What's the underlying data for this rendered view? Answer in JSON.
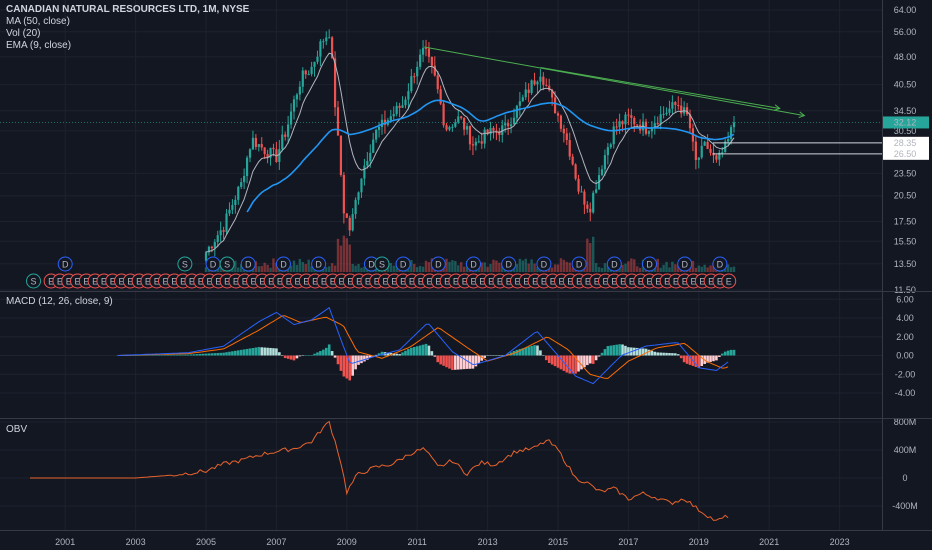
{
  "header": {
    "symbol_title": "CANADIAN NATURAL RESOURCES LTD, 1M, NYSE",
    "studies": [
      "MA (50, close)",
      "Vol (20)",
      "EMA (9, close)"
    ]
  },
  "panes": {
    "macd_title": "MACD (12, 26, close, 9)",
    "obv_title": "OBV"
  },
  "colors": {
    "background": "#131722",
    "up": "#26a69a",
    "down": "#ef5350",
    "ma50": "#2196f3",
    "ema9": "#b2b5be",
    "trendline": "#4caf50",
    "macd": "#2962ff",
    "signal": "#ff6d00",
    "obv": "#e8632b"
  },
  "chart_data": [
    {
      "type": "candlestick",
      "title": "CANADIAN NATURAL RESOURCES LTD, 1M, NYSE",
      "y_scale": "log",
      "y_ticks": [
        "64.00",
        "56.00",
        "48.00",
        "40.50",
        "34.50",
        "30.50",
        "23.50",
        "20.50",
        "17.50",
        "15.50",
        "13.50",
        "11.50"
      ],
      "x_ticks": [
        "2001",
        "2003",
        "2005",
        "2007",
        "2009",
        "2011",
        "2013",
        "2015",
        "2017",
        "2019",
        "2021",
        "2023"
      ],
      "price_labels": [
        {
          "value": "32.12",
          "role": "last price"
        },
        {
          "value": "28.35",
          "role": "horizontal level"
        },
        {
          "value": "26.50",
          "role": "horizontal level"
        }
      ],
      "price_path": [
        [
          2005.0,
          14.5
        ],
        [
          2005.5,
          17.0
        ],
        [
          2006.0,
          22.0
        ],
        [
          2006.3,
          29.0
        ],
        [
          2006.7,
          27.0
        ],
        [
          2007.0,
          26.0
        ],
        [
          2007.3,
          31.0
        ],
        [
          2007.7,
          42.0
        ],
        [
          2008.0,
          45.0
        ],
        [
          2008.3,
          53.0
        ],
        [
          2008.5,
          56.0
        ],
        [
          2008.7,
          32.0
        ],
        [
          2008.9,
          19.0
        ],
        [
          2009.1,
          16.5
        ],
        [
          2009.4,
          23.0
        ],
        [
          2009.8,
          30.0
        ],
        [
          2010.2,
          33.0
        ],
        [
          2010.6,
          36.0
        ],
        [
          2011.0,
          46.0
        ],
        [
          2011.2,
          50.0
        ],
        [
          2011.5,
          42.0
        ],
        [
          2011.8,
          31.0
        ],
        [
          2012.2,
          33.0
        ],
        [
          2012.6,
          28.0
        ],
        [
          2013.0,
          30.0
        ],
        [
          2013.5,
          31.0
        ],
        [
          2014.0,
          37.0
        ],
        [
          2014.5,
          44.0
        ],
        [
          2014.8,
          37.0
        ],
        [
          2015.2,
          30.0
        ],
        [
          2015.6,
          21.0
        ],
        [
          2015.9,
          19.0
        ],
        [
          2016.2,
          24.0
        ],
        [
          2016.6,
          31.0
        ],
        [
          2017.0,
          33.0
        ],
        [
          2017.5,
          31.0
        ],
        [
          2018.0,
          34.0
        ],
        [
          2018.4,
          36.0
        ],
        [
          2018.7,
          33.0
        ],
        [
          2018.9,
          25.0
        ],
        [
          2019.2,
          28.0
        ],
        [
          2019.5,
          25.0
        ],
        [
          2019.8,
          28.0
        ],
        [
          2020.0,
          32.12
        ]
      ],
      "volume_spikes_years": [
        2008.8,
        2009.0,
        2015.9
      ],
      "events": {
        "dividends": [
          2001.0,
          2005.2,
          2006.2,
          2007.2,
          2008.2,
          2009.7,
          2010.6,
          2011.6,
          2012.6,
          2013.6,
          2014.6,
          2015.6,
          2016.6,
          2017.6,
          2018.6,
          2019.6
        ],
        "splits": [
          2000.1,
          2004.4,
          2005.6,
          2010.0
        ]
      },
      "trendlines": [
        {
          "from": [
            2011.2,
            51.0
          ],
          "to": [
            2022.0,
            33.5
          ]
        },
        {
          "from": [
            2014.5,
            45.0
          ],
          "to": [
            2021.3,
            35.0
          ]
        }
      ]
    },
    {
      "type": "line",
      "title": "MACD (12, 26, close, 9)",
      "y_ticks": [
        "6.00",
        "4.00",
        "2.00",
        "0.00",
        "-2.00",
        "-4.00"
      ],
      "series": [
        {
          "name": "MACD",
          "values_by_year": [
            [
              2002.5,
              0.0
            ],
            [
              2004.5,
              0.3
            ],
            [
              2005.5,
              1.0
            ],
            [
              2006.5,
              3.6
            ],
            [
              2007.0,
              4.6
            ],
            [
              2007.5,
              3.3
            ],
            [
              2008.0,
              3.8
            ],
            [
              2008.5,
              5.1
            ],
            [
              2008.9,
              1.0
            ],
            [
              2009.1,
              -0.9
            ],
            [
              2009.7,
              -0.2
            ],
            [
              2010.5,
              0.6
            ],
            [
              2011.3,
              3.5
            ],
            [
              2012.0,
              0.4
            ],
            [
              2012.6,
              -1.0
            ],
            [
              2013.5,
              0.0
            ],
            [
              2014.4,
              2.6
            ],
            [
              2015.0,
              0.0
            ],
            [
              2015.5,
              -2.2
            ],
            [
              2016.0,
              -3.0
            ],
            [
              2016.8,
              0.0
            ],
            [
              2017.5,
              1.0
            ],
            [
              2018.4,
              1.4
            ],
            [
              2019.0,
              -1.3
            ],
            [
              2019.5,
              -1.6
            ],
            [
              2019.9,
              -0.5
            ]
          ]
        },
        {
          "name": "Signal",
          "values_by_year": [
            [
              2002.5,
              0.0
            ],
            [
              2004.5,
              0.2
            ],
            [
              2005.5,
              0.7
            ],
            [
              2006.5,
              2.7
            ],
            [
              2007.2,
              4.3
            ],
            [
              2007.7,
              3.5
            ],
            [
              2008.4,
              4.1
            ],
            [
              2008.9,
              3.2
            ],
            [
              2009.3,
              0.4
            ],
            [
              2010.0,
              -0.3
            ],
            [
              2010.8,
              0.9
            ],
            [
              2011.6,
              3.0
            ],
            [
              2012.4,
              0.9
            ],
            [
              2013.0,
              -0.6
            ],
            [
              2013.8,
              0.3
            ],
            [
              2014.7,
              2.0
            ],
            [
              2015.3,
              0.6
            ],
            [
              2015.9,
              -2.0
            ],
            [
              2016.4,
              -2.5
            ],
            [
              2017.0,
              -0.6
            ],
            [
              2017.8,
              0.8
            ],
            [
              2018.6,
              1.3
            ],
            [
              2019.2,
              -0.6
            ],
            [
              2019.7,
              -1.4
            ],
            [
              2019.9,
              -1.1
            ]
          ]
        }
      ]
    },
    {
      "type": "line",
      "title": "OBV",
      "y_ticks": [
        "800M",
        "400M",
        "0",
        "-400M"
      ],
      "series": [
        {
          "name": "OBV",
          "values_by_year": [
            [
              2000.0,
              0
            ],
            [
              2003.0,
              0
            ],
            [
              2004.0,
              40
            ],
            [
              2005.0,
              100
            ],
            [
              2005.5,
              200
            ],
            [
              2006.0,
              250
            ],
            [
              2006.5,
              330
            ],
            [
              2007.0,
              380
            ],
            [
              2007.5,
              420
            ],
            [
              2008.0,
              520
            ],
            [
              2008.3,
              700
            ],
            [
              2008.5,
              800
            ],
            [
              2008.8,
              300
            ],
            [
              2009.0,
              -200
            ],
            [
              2009.3,
              50
            ],
            [
              2009.8,
              150
            ],
            [
              2010.3,
              200
            ],
            [
              2010.8,
              350
            ],
            [
              2011.2,
              420
            ],
            [
              2011.6,
              150
            ],
            [
              2012.0,
              250
            ],
            [
              2012.4,
              60
            ],
            [
              2012.8,
              220
            ],
            [
              2013.2,
              190
            ],
            [
              2013.8,
              380
            ],
            [
              2014.3,
              420
            ],
            [
              2014.7,
              540
            ],
            [
              2015.0,
              400
            ],
            [
              2015.5,
              0
            ],
            [
              2015.8,
              -60
            ],
            [
              2016.2,
              -200
            ],
            [
              2016.6,
              -150
            ],
            [
              2017.0,
              -300
            ],
            [
              2017.4,
              -220
            ],
            [
              2017.8,
              -280
            ],
            [
              2018.2,
              -360
            ],
            [
              2018.6,
              -290
            ],
            [
              2018.9,
              -420
            ],
            [
              2019.2,
              -520
            ],
            [
              2019.5,
              -620
            ],
            [
              2019.7,
              -570
            ],
            [
              2019.9,
              -530
            ]
          ]
        }
      ]
    }
  ]
}
